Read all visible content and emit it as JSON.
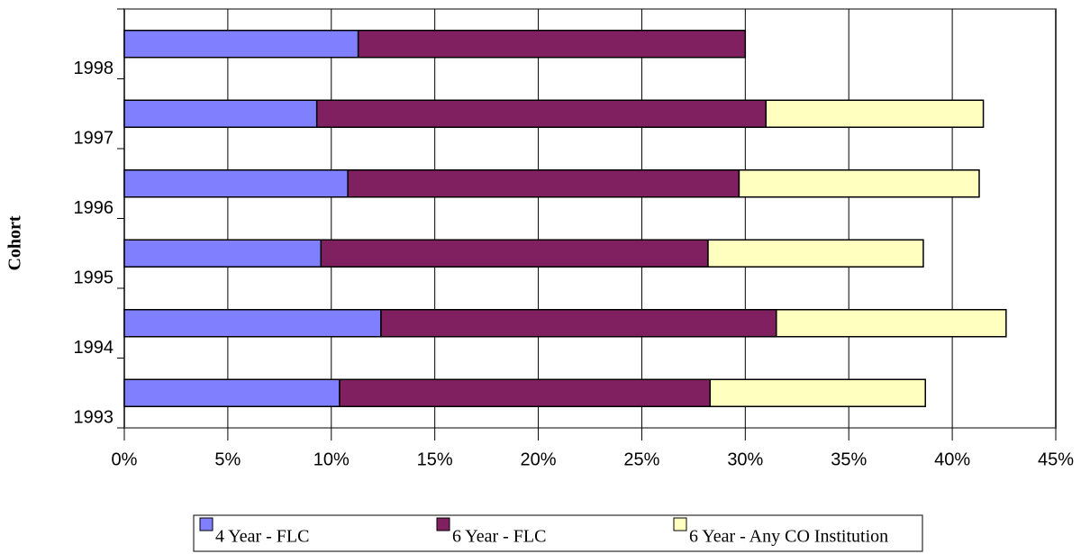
{
  "chart_data": {
    "type": "stacked_barh",
    "y_label": "Cohort",
    "categories": [
      "1993",
      "1994",
      "1995",
      "1996",
      "1997",
      "1998"
    ],
    "series": [
      {
        "name": "4 Year - FLC",
        "color": "#8080ff",
        "values": [
          10.4,
          12.4,
          9.5,
          10.8,
          9.3,
          11.3
        ]
      },
      {
        "name": "6 Year - FLC",
        "color": "#802060",
        "values": [
          17.9,
          19.1,
          18.7,
          18.9,
          21.7,
          18.7
        ]
      },
      {
        "name": "6 Year - Any CO Institution",
        "color": "#ffffc0",
        "values": [
          10.4,
          11.1,
          10.4,
          11.6,
          10.5,
          null
        ]
      }
    ],
    "xlim": [
      0,
      45
    ],
    "xticks": [
      {
        "value": 0,
        "label": "0%"
      },
      {
        "value": 5,
        "label": "5%"
      },
      {
        "value": 10,
        "label": "10%"
      },
      {
        "value": 15,
        "label": "15%"
      },
      {
        "value": 20,
        "label": "20%"
      },
      {
        "value": 25,
        "label": "25%"
      },
      {
        "value": 30,
        "label": "30%"
      },
      {
        "value": 35,
        "label": "35%"
      },
      {
        "value": 40,
        "label": "40%"
      },
      {
        "value": 45,
        "label": "45%"
      }
    ],
    "grid": true,
    "legend": "bottom"
  }
}
